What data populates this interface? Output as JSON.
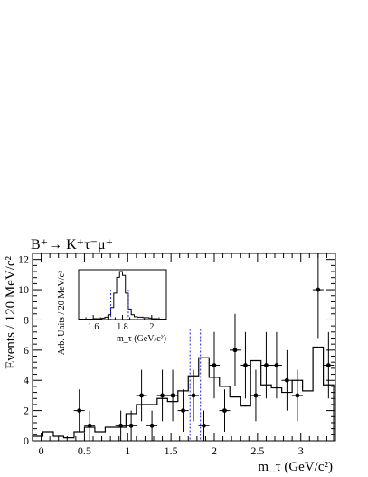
{
  "chart_data": [
    {
      "type": "histogram",
      "title": "B⁺→ K⁺τ⁻μ⁺",
      "xlabel": "m_τ (GeV/c²)",
      "ylabel": "Events / 120 MeV/c²",
      "xlim": [
        -0.1,
        3.4
      ],
      "ylim": [
        0,
        12.4
      ],
      "xticks": [
        0,
        0.5,
        1,
        1.5,
        2,
        2.5,
        3
      ],
      "xtick_labels": [
        "0",
        "0.5",
        "1",
        "1.5",
        "2",
        "2.5",
        "3"
      ],
      "yticks": [
        0,
        2,
        4,
        6,
        8,
        10,
        12
      ],
      "ytick_labels": [
        "0",
        "2",
        "4",
        "6",
        "8",
        "10",
        "12"
      ],
      "signal_window": [
        1.72,
        1.84
      ],
      "histogram": {
        "edges": [
          -0.1,
          0.02,
          0.14,
          0.26,
          0.38,
          0.5,
          0.62,
          0.74,
          0.86,
          0.98,
          1.1,
          1.22,
          1.34,
          1.46,
          1.58,
          1.7,
          1.82,
          1.94,
          2.06,
          2.18,
          2.3,
          2.42,
          2.54,
          2.66,
          2.78,
          2.9,
          3.02,
          3.14,
          3.26,
          3.38
        ],
        "values": [
          0.3,
          0.6,
          0.3,
          0.2,
          0.6,
          0.9,
          0.6,
          0.9,
          0.9,
          1.8,
          2.4,
          2.4,
          2.8,
          2.6,
          3.3,
          4.3,
          5.5,
          4.2,
          3.6,
          2.9,
          2.3,
          5.3,
          3.7,
          3.5,
          3.2,
          4.0,
          3.3,
          6.2,
          3.7
        ]
      },
      "points": [
        {
          "x": 0.44,
          "y": 2,
          "err": 1.4
        },
        {
          "x": 0.56,
          "y": 1,
          "err": 1.0
        },
        {
          "x": 0.92,
          "y": 1,
          "err": 1.0
        },
        {
          "x": 1.04,
          "y": 1,
          "err": 1.0
        },
        {
          "x": 1.16,
          "y": 3,
          "err": 1.7
        },
        {
          "x": 1.28,
          "y": 1,
          "err": 1.0
        },
        {
          "x": 1.4,
          "y": 3,
          "err": 1.7
        },
        {
          "x": 1.52,
          "y": 3,
          "err": 1.7
        },
        {
          "x": 1.64,
          "y": 2,
          "err": 1.4
        },
        {
          "x": 1.76,
          "y": 3,
          "err": 1.7
        },
        {
          "x": 1.88,
          "y": 1,
          "err": 1.0
        },
        {
          "x": 2.0,
          "y": 5,
          "err": 2.2
        },
        {
          "x": 2.12,
          "y": 2,
          "err": 1.4
        },
        {
          "x": 2.24,
          "y": 6,
          "err": 2.4
        },
        {
          "x": 2.36,
          "y": 5,
          "err": 2.2
        },
        {
          "x": 2.48,
          "y": 3,
          "err": 1.7
        },
        {
          "x": 2.6,
          "y": 5,
          "err": 2.2
        },
        {
          "x": 2.72,
          "y": 5,
          "err": 2.2
        },
        {
          "x": 2.84,
          "y": 4,
          "err": 2.0
        },
        {
          "x": 2.96,
          "y": 3,
          "err": 1.7
        },
        {
          "x": 3.2,
          "y": 10,
          "err": 3.2
        },
        {
          "x": 3.32,
          "y": 5,
          "err": 2.2
        }
      ]
    },
    {
      "type": "histogram",
      "title": "",
      "xlabel": "m_τ (GeV/c²)",
      "ylabel": "Arb. Units / 20 MeV/c²",
      "xlim": [
        1.5,
        2.1
      ],
      "ylim": [
        0,
        1
      ],
      "xticks": [
        1.6,
        1.8,
        2.0
      ],
      "xtick_labels": [
        "1.6",
        "1.8",
        "2"
      ],
      "signal_window": [
        1.72,
        1.84
      ],
      "histogram": {
        "edges": [
          1.5,
          1.52,
          1.54,
          1.56,
          1.58,
          1.6,
          1.62,
          1.64,
          1.66,
          1.68,
          1.7,
          1.72,
          1.74,
          1.76,
          1.78,
          1.8,
          1.82,
          1.84,
          1.86,
          1.88,
          1.9,
          1.92,
          1.94,
          1.96,
          1.98,
          2.0,
          2.02,
          2.04,
          2.06,
          2.08,
          2.1
        ],
        "values": [
          0.01,
          0.01,
          0.01,
          0.01,
          0.01,
          0.02,
          0.02,
          0.02,
          0.03,
          0.05,
          0.1,
          0.25,
          0.55,
          0.88,
          1.0,
          0.92,
          0.55,
          0.22,
          0.1,
          0.06,
          0.05,
          0.05,
          0.04,
          0.04,
          0.03,
          0.02,
          0.02,
          0.01,
          0.01,
          0.01
        ]
      }
    }
  ]
}
